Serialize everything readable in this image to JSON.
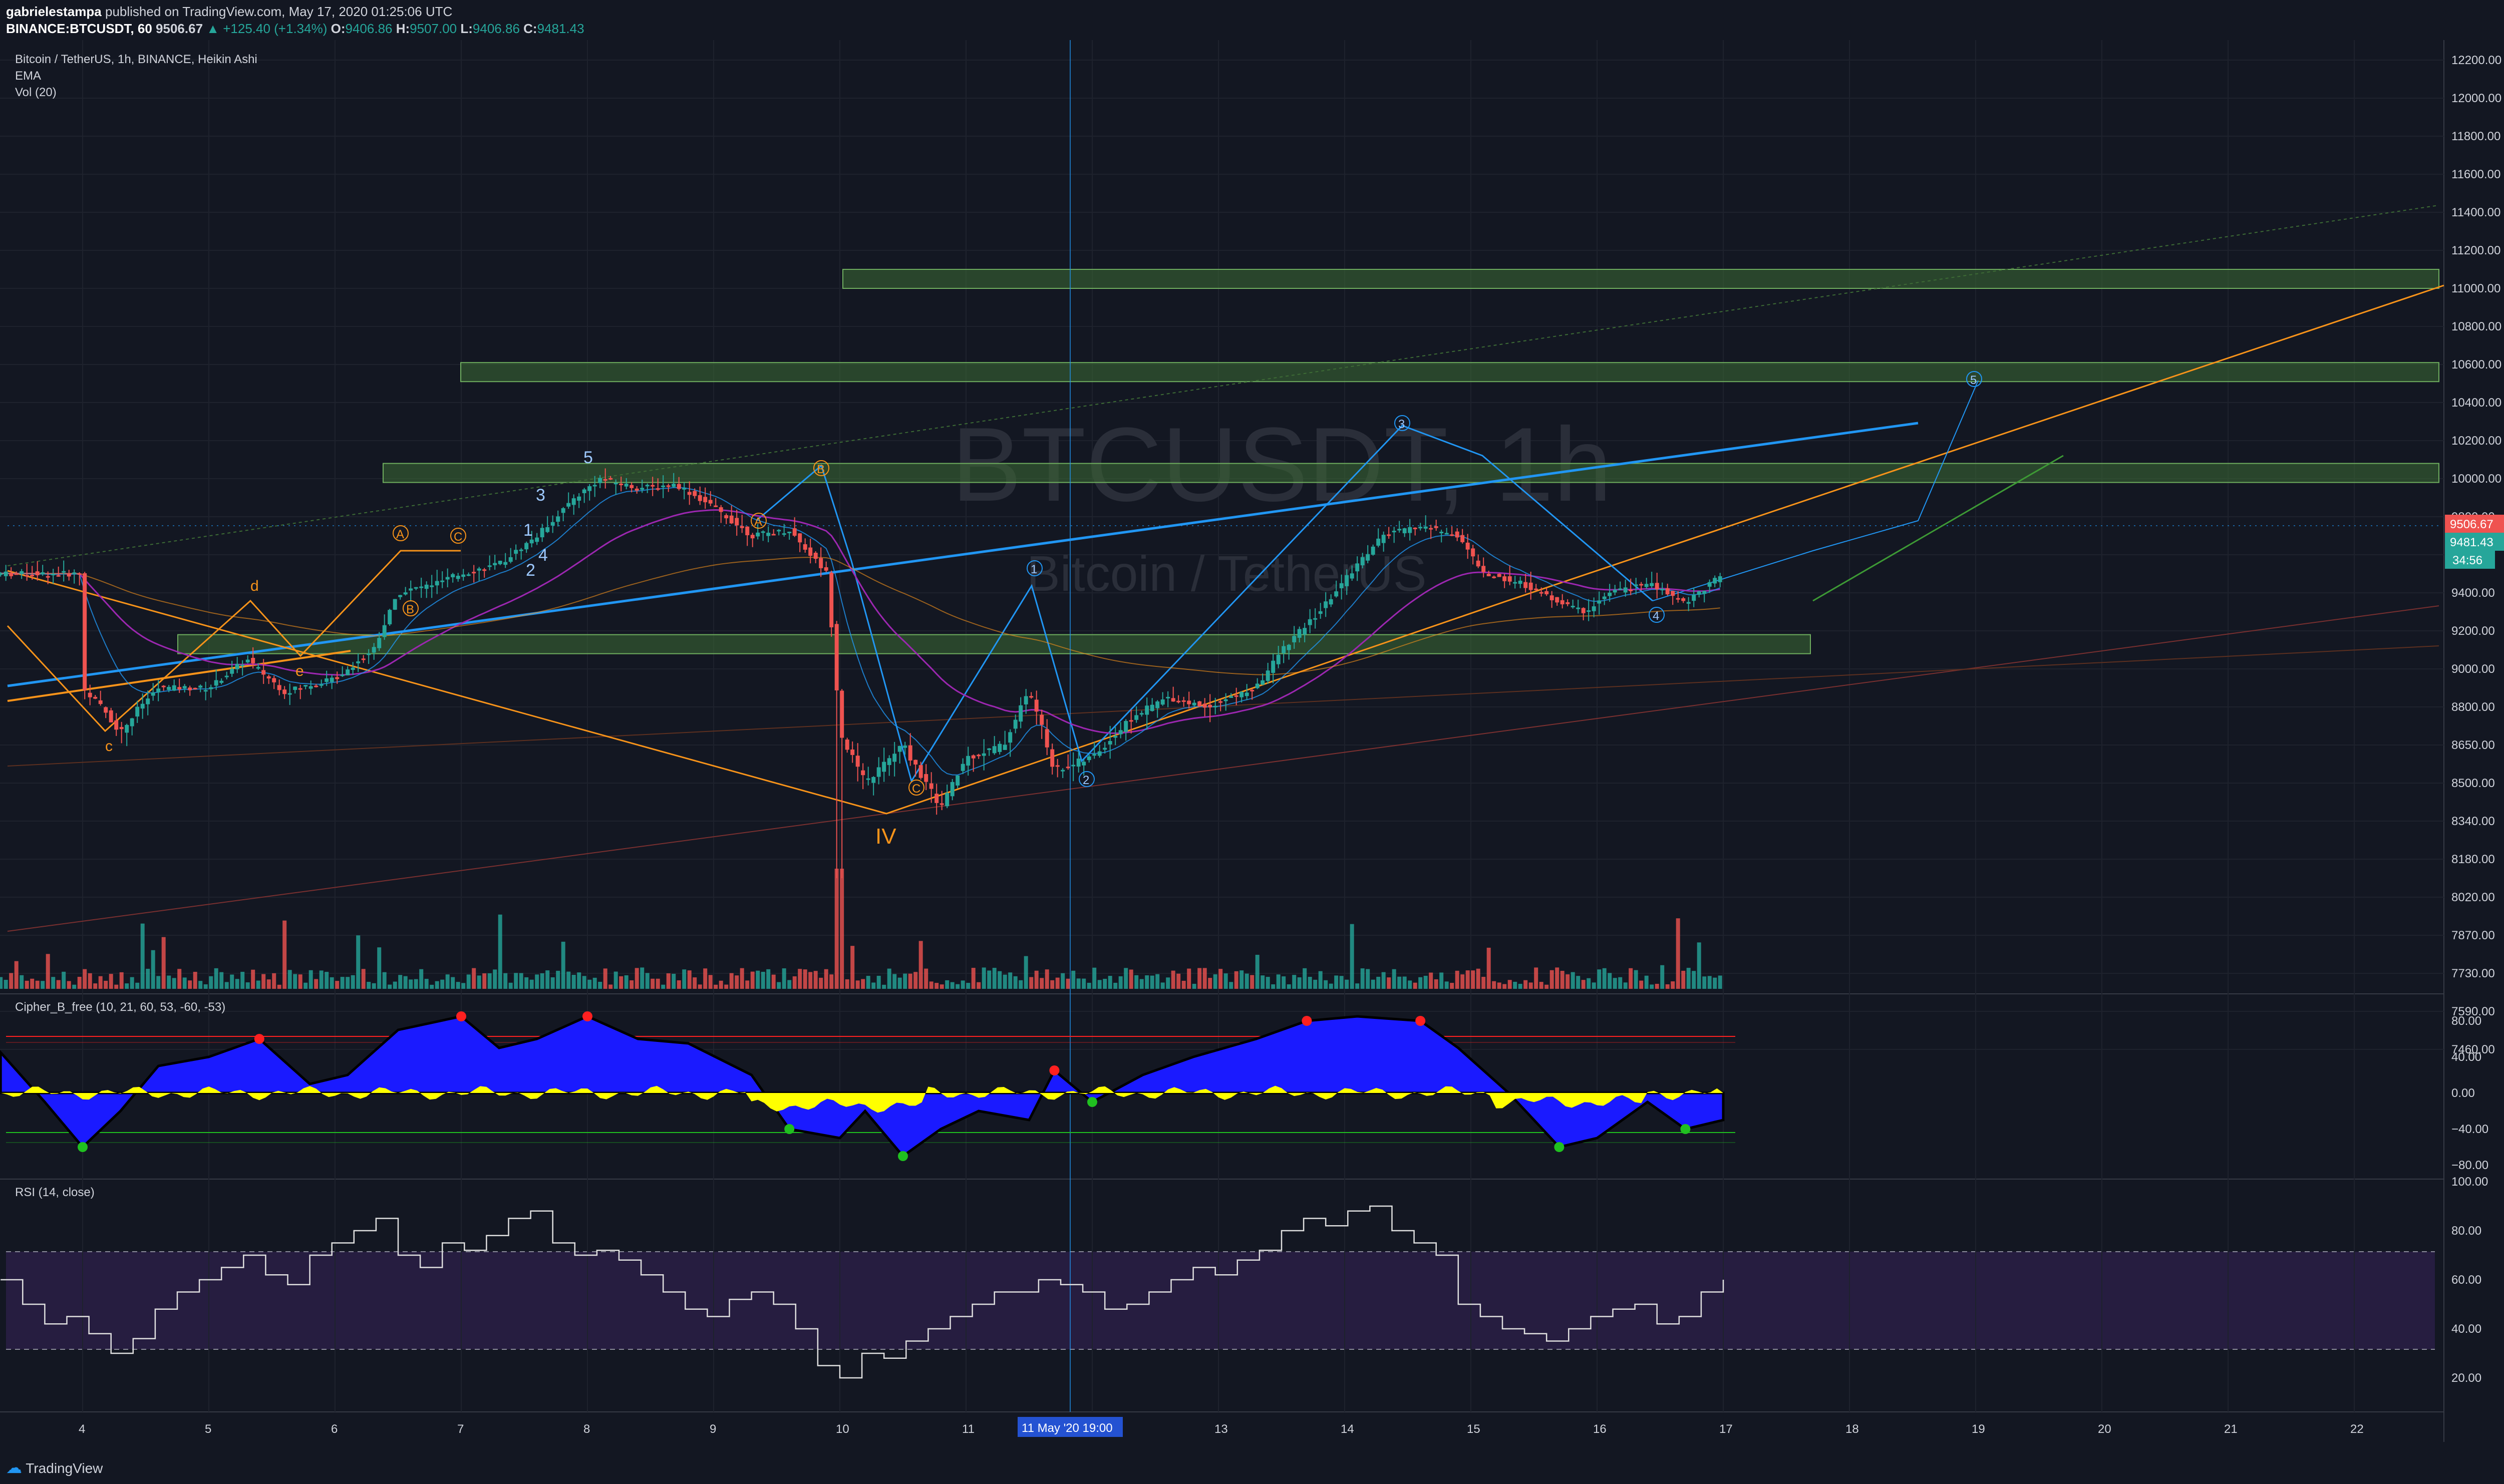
{
  "header": {
    "author": "gabrielestampa",
    "published": "published on TradingView.com, May 17, 2020 01:25:06 UTC",
    "symbol_line": "BINANCE:BTCUSDT, 60",
    "last": "9506.67",
    "change": "▲ +125.40 (+1.34%)",
    "o_label": "O:",
    "o": "9406.86",
    "h_label": "H:",
    "h": "9507.00",
    "l_label": "L:",
    "l": "9406.86",
    "c_label": "C:",
    "c": "9481.43"
  },
  "legend": {
    "title": "Bitcoin / TetherUS, 1h, BINANCE, Heikin Ashi",
    "ema": "EMA",
    "vol": "Vol (20)",
    "cipher": "Cipher_B_free (10, 21, 60, 53, -60, -53)",
    "rsi": "RSI (14, close)"
  },
  "watermark": {
    "symbol": "BTCUSDT, 1h",
    "name": "Bitcoin / TetherUS"
  },
  "footer": {
    "logo": "TradingView"
  },
  "price_labels": {
    "last": "9506.67",
    "close": "9481.43",
    "countdown": "34:56"
  },
  "colors": {
    "bg": "#131722",
    "up": "#26a69a",
    "down": "#ef5350",
    "zone": "#3d6b35",
    "blue": "#2196f3",
    "orange": "#f7931a",
    "cipher_blue": "#1a1aff",
    "cipher_yellow": "#ffff00",
    "rsi_band": "#2a1f45"
  },
  "chart_data": [
    {
      "type": "candlestick",
      "title": "Bitcoin / TetherUS, 1h, BINANCE, Heikin Ashi",
      "y_ticks": [
        "12200.00",
        "12000.00",
        "11800.00",
        "11600.00",
        "11400.00",
        "11200.00",
        "11000.00",
        "10800.00",
        "10600.00",
        "10400.00",
        "10200.00",
        "10000.00",
        "9800.00",
        "9600.00",
        "9400.00",
        "9200.00",
        "9000.00",
        "8800.00",
        "8650.00",
        "8500.00",
        "8340.00",
        "8180.00",
        "8020.00",
        "7870.00",
        "7730.00",
        "7590.00",
        "7460.00"
      ],
      "x_ticks": [
        "4",
        "5",
        "6",
        "7",
        "8",
        "9",
        "10",
        "11",
        "11 May '20   19:00",
        "13",
        "14",
        "15",
        "16",
        "17",
        "18",
        "19",
        "20",
        "21",
        "22"
      ],
      "close_path": [
        [
          4.0,
          8900
        ],
        [
          4.3,
          8700
        ],
        [
          4.6,
          8900
        ],
        [
          5.0,
          8900
        ],
        [
          5.3,
          9050
        ],
        [
          5.6,
          8880
        ],
        [
          6.0,
          8950
        ],
        [
          6.3,
          9100
        ],
        [
          6.5,
          9400
        ],
        [
          6.8,
          9450
        ],
        [
          7.0,
          9500
        ],
        [
          7.3,
          9550
        ],
        [
          7.6,
          9700
        ],
        [
          7.9,
          9900
        ],
        [
          8.1,
          10000
        ],
        [
          8.4,
          9950
        ],
        [
          8.7,
          9970
        ],
        [
          9.0,
          9850
        ],
        [
          9.3,
          9700
        ],
        [
          9.6,
          9730
        ],
        [
          9.9,
          9500
        ],
        [
          10.0,
          8700
        ],
        [
          10.2,
          8500
        ],
        [
          10.5,
          8650
        ],
        [
          10.8,
          8400
        ],
        [
          11.0,
          8600
        ],
        [
          11.3,
          8650
        ],
        [
          11.5,
          8880
        ],
        [
          11.7,
          8550
        ],
        [
          12.0,
          8600
        ],
        [
          12.3,
          8750
        ],
        [
          12.6,
          8850
        ],
        [
          12.9,
          8800
        ],
        [
          13.3,
          8900
        ],
        [
          13.5,
          9100
        ],
        [
          13.8,
          9300
        ],
        [
          14.1,
          9550
        ],
        [
          14.3,
          9700
        ],
        [
          14.6,
          9750
        ],
        [
          14.9,
          9700
        ],
        [
          15.1,
          9500
        ],
        [
          15.4,
          9450
        ],
        [
          15.7,
          9350
        ],
        [
          15.9,
          9300
        ],
        [
          16.1,
          9400
        ],
        [
          16.4,
          9450
        ],
        [
          16.7,
          9350
        ],
        [
          17.0,
          9500
        ]
      ],
      "zones": [
        [
          9080,
          9180
        ],
        [
          9980,
          10080
        ],
        [
          10510,
          10610
        ],
        [
          11000,
          11100
        ]
      ],
      "wave_labels": [
        "c",
        "d",
        "e",
        "A",
        "B",
        "C",
        "1",
        "2",
        "3",
        "4",
        "5",
        "A",
        "B",
        "C",
        "IV",
        "1",
        "2",
        "3",
        "4",
        "5"
      ]
    },
    {
      "type": "area",
      "title": "Cipher_B_free (10, 21, 60, 53, -60, -53)",
      "y_ticks": [
        "80.00",
        "40.00",
        "0.00",
        "−40.00",
        "−80.00"
      ],
      "ylim": [
        -100,
        100
      ]
    },
    {
      "type": "line",
      "title": "RSI (14, close)",
      "y_ticks": [
        "100.00",
        "80.00",
        "60.00",
        "40.00",
        "20.00"
      ],
      "ylim": [
        10,
        100
      ],
      "bands": [
        30,
        70
      ],
      "values": [
        60,
        50,
        42,
        45,
        38,
        30,
        36,
        48,
        55,
        60,
        65,
        70,
        62,
        58,
        70,
        75,
        80,
        85,
        70,
        65,
        75,
        72,
        78,
        85,
        88,
        75,
        70,
        72,
        68,
        62,
        55,
        48,
        45,
        52,
        55,
        50,
        40,
        25,
        20,
        30,
        28,
        35,
        40,
        45,
        50,
        55,
        55,
        60,
        58,
        55,
        48,
        50,
        55,
        60,
        65,
        62,
        68,
        72,
        80,
        85,
        82,
        88,
        90,
        80,
        75,
        70,
        50,
        45,
        40,
        38,
        35,
        40,
        45,
        48,
        50,
        42,
        45,
        55,
        60
      ]
    }
  ]
}
